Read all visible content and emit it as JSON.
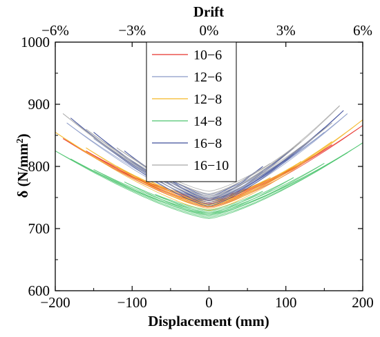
{
  "chart_data": {
    "type": "line",
    "xlabel": "Displacement (mm)",
    "ylabel_parts": {
      "main": "δ  (N/mm",
      "sup": "2",
      "end": ")"
    },
    "top_axis_label": "Drift",
    "xlim": [
      -200,
      200
    ],
    "ylim": [
      600,
      1000
    ],
    "x_ticks": [
      -200,
      -100,
      0,
      100,
      200
    ],
    "y_ticks": [
      600,
      700,
      800,
      900,
      1000
    ],
    "x_tick_labels": [
      "−200",
      "−100",
      "0",
      "100",
      "200"
    ],
    "y_tick_labels": [
      "600",
      "700",
      "800",
      "900",
      "1000"
    ],
    "top_ticks": [
      -200,
      -100,
      0,
      100,
      200
    ],
    "top_tick_labels": [
      "−6%",
      "−3%",
      "0%",
      "3%",
      "6%"
    ],
    "grid": false,
    "legend_position": "top-center",
    "series": [
      {
        "name": "10−6",
        "color": "#e8312c",
        "loops": [
          {
            "xmin": -190,
            "ymin_left": 845,
            "xmax": 200,
            "ymax_right": 866,
            "base": 740
          },
          {
            "xmin": -160,
            "ymin_left": 825,
            "xmax": 160,
            "ymax_right": 835,
            "base": 742
          },
          {
            "xmin": -120,
            "ymin_left": 795,
            "xmax": 120,
            "ymax_right": 805,
            "base": 745
          },
          {
            "xmin": -80,
            "ymin_left": 775,
            "xmax": 80,
            "ymax_right": 780,
            "base": 748
          }
        ]
      },
      {
        "name": "12−6",
        "color": "#8a9ac8",
        "loops": [
          {
            "xmin": -185,
            "ymin_left": 870,
            "xmax": 180,
            "ymax_right": 885,
            "base": 745
          },
          {
            "xmin": -150,
            "ymin_left": 845,
            "xmax": 150,
            "ymax_right": 855,
            "base": 748
          },
          {
            "xmin": -110,
            "ymin_left": 815,
            "xmax": 110,
            "ymax_right": 820,
            "base": 752
          },
          {
            "xmin": -70,
            "ymin_left": 790,
            "xmax": 70,
            "ymax_right": 792,
            "base": 755
          }
        ]
      },
      {
        "name": "12−8",
        "color": "#f5b623",
        "loops": [
          {
            "xmin": -200,
            "ymin_left": 855,
            "xmax": 200,
            "ymax_right": 875,
            "base": 735
          },
          {
            "xmin": -160,
            "ymin_left": 830,
            "xmax": 160,
            "ymax_right": 840,
            "base": 738
          },
          {
            "xmin": -120,
            "ymin_left": 800,
            "xmax": 120,
            "ymax_right": 808,
            "base": 742
          },
          {
            "xmin": -80,
            "ymin_left": 778,
            "xmax": 80,
            "ymax_right": 782,
            "base": 745
          }
        ]
      },
      {
        "name": "14−8",
        "color": "#4cc46e",
        "loops": [
          {
            "xmin": -200,
            "ymin_left": 825,
            "xmax": 200,
            "ymax_right": 838,
            "base": 722
          },
          {
            "xmin": -180,
            "ymin_left": 812,
            "xmax": 180,
            "ymax_right": 822,
            "base": 724
          },
          {
            "xmin": -150,
            "ymin_left": 795,
            "xmax": 150,
            "ymax_right": 805,
            "base": 726
          },
          {
            "xmin": -110,
            "ymin_left": 775,
            "xmax": 110,
            "ymax_right": 782,
            "base": 728
          },
          {
            "xmin": -70,
            "ymin_left": 755,
            "xmax": 70,
            "ymax_right": 760,
            "base": 730
          }
        ]
      },
      {
        "name": "16−8",
        "color": "#3e4d9a",
        "loops": [
          {
            "xmin": -180,
            "ymin_left": 878,
            "xmax": 175,
            "ymax_right": 890,
            "base": 742
          },
          {
            "xmin": -150,
            "ymin_left": 855,
            "xmax": 150,
            "ymax_right": 862,
            "base": 745
          },
          {
            "xmin": -110,
            "ymin_left": 825,
            "xmax": 110,
            "ymax_right": 830,
            "base": 748
          },
          {
            "xmin": -70,
            "ymin_left": 795,
            "xmax": 70,
            "ymax_right": 800,
            "base": 752
          }
        ]
      },
      {
        "name": "16−10",
        "color": "#a8a8a8",
        "loops": [
          {
            "xmin": -190,
            "ymin_left": 885,
            "xmax": 170,
            "ymax_right": 898,
            "base": 748
          },
          {
            "xmin": -160,
            "ymin_left": 860,
            "xmax": 160,
            "ymax_right": 870,
            "base": 752
          },
          {
            "xmin": -120,
            "ymin_left": 830,
            "xmax": 120,
            "ymax_right": 840,
            "base": 756
          },
          {
            "xmin": -80,
            "ymin_left": 800,
            "xmax": 80,
            "ymax_right": 805,
            "base": 760
          }
        ]
      }
    ]
  }
}
